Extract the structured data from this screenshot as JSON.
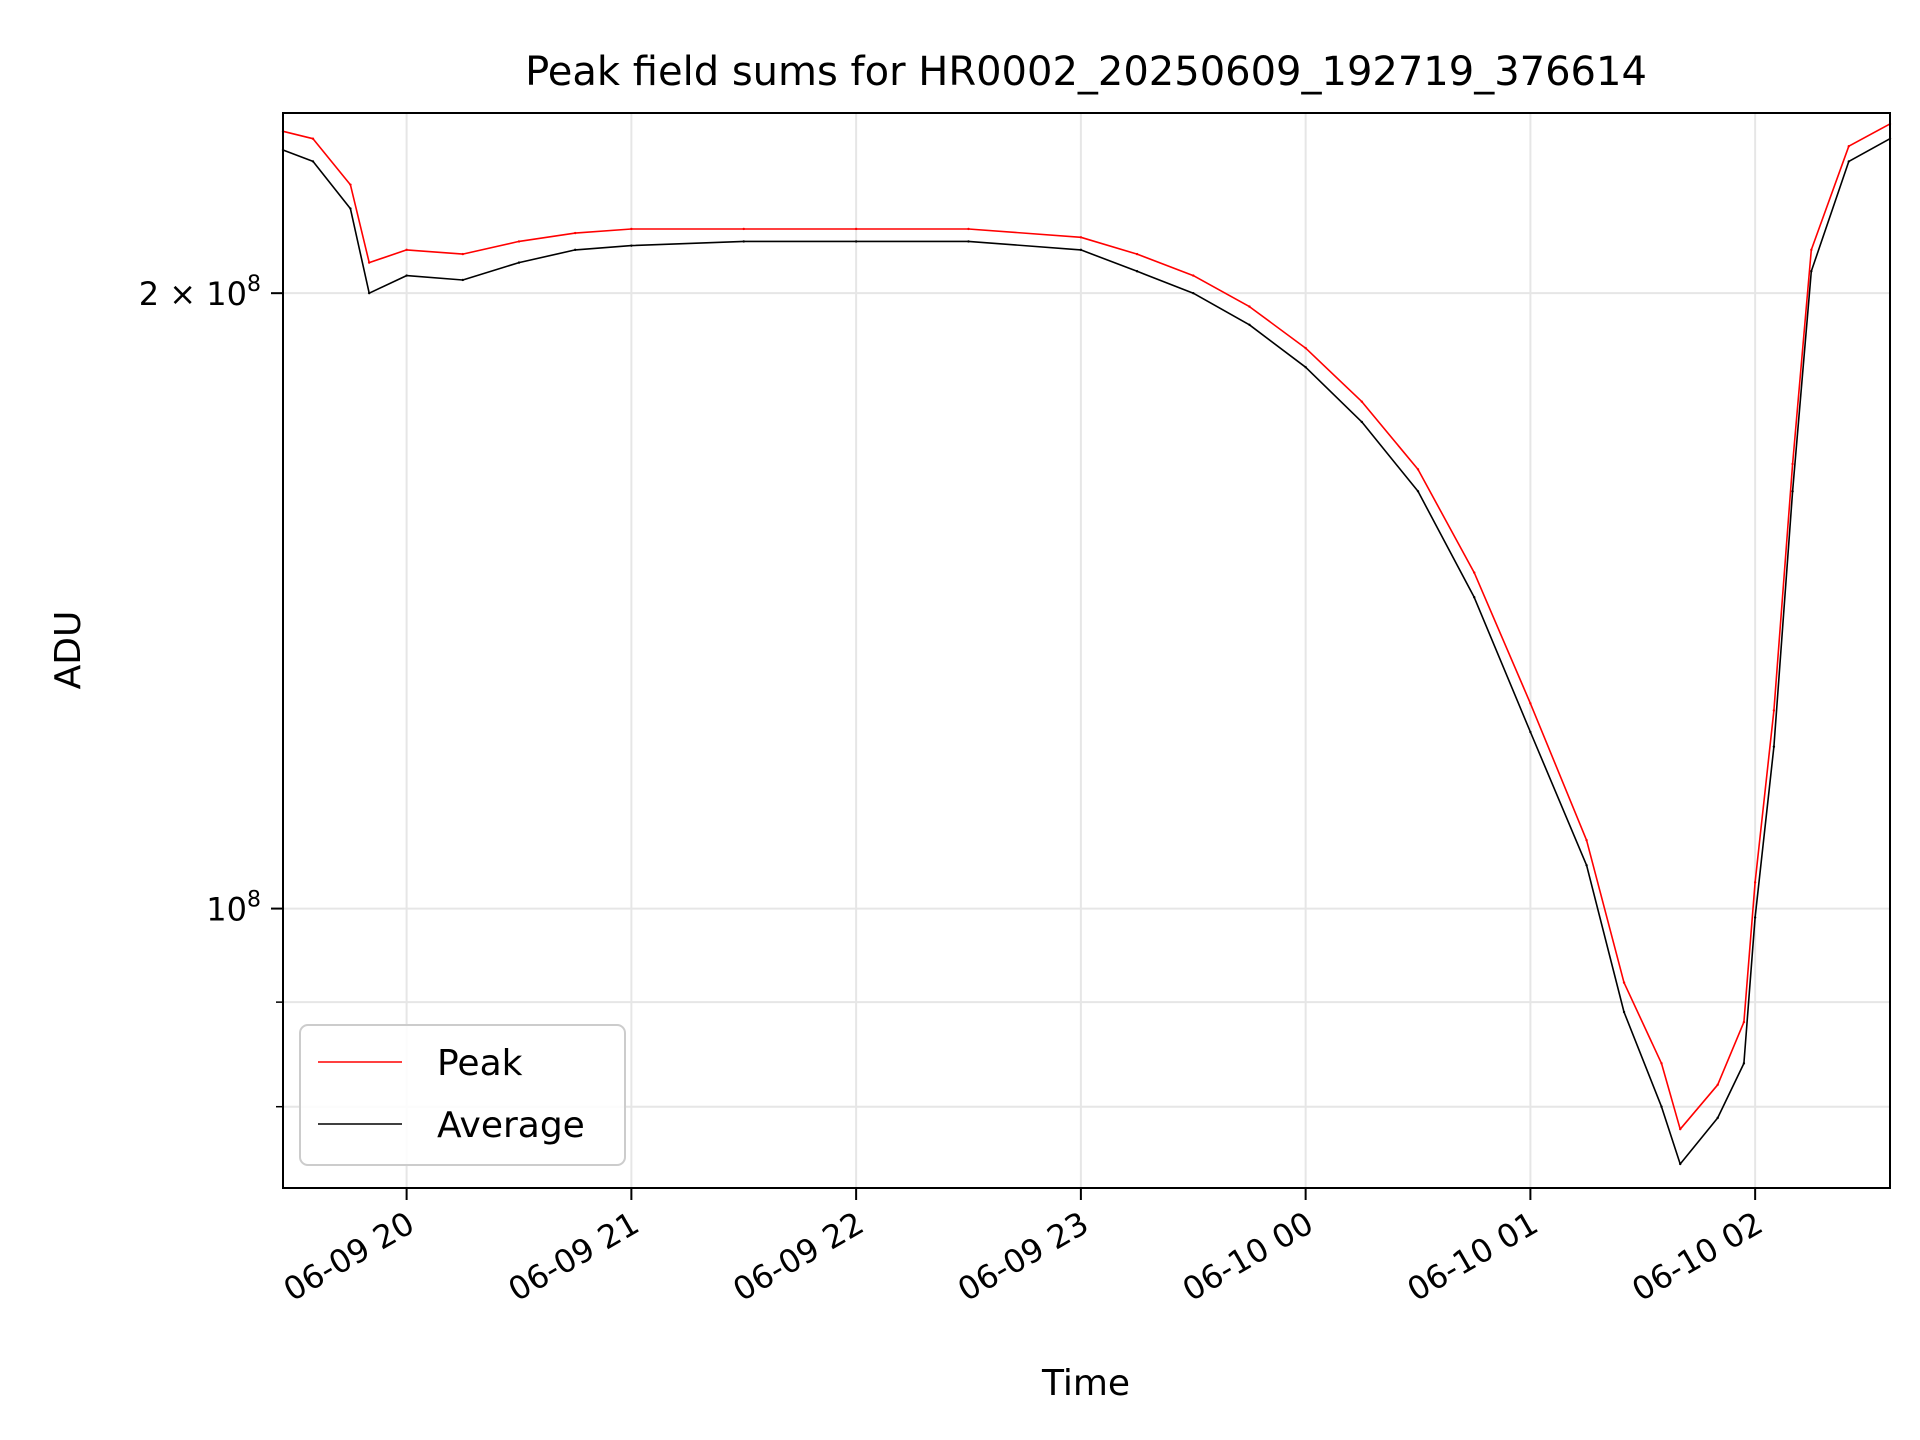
{
  "chart_data": {
    "type": "line",
    "title": "Peak field sums for HR0002_20250609_192719_376614",
    "xlabel": "Time",
    "ylabel": "ADU",
    "y_scale": "log",
    "grid": true,
    "legend_placement": "lower-left",
    "xlim": [
      "2025-06-09 19:27",
      "2025-06-10 02:36"
    ],
    "ylim": [
      73000000,
      245000000
    ],
    "x_ticks": [
      {
        "value": "2025-06-09 20:00",
        "label": "06-09 20"
      },
      {
        "value": "2025-06-09 21:00",
        "label": "06-09 21"
      },
      {
        "value": "2025-06-09 22:00",
        "label": "06-09 22"
      },
      {
        "value": "2025-06-09 23:00",
        "label": "06-09 23"
      },
      {
        "value": "2025-06-10 00:00",
        "label": "06-10 00"
      },
      {
        "value": "2025-06-10 01:00",
        "label": "06-10 01"
      },
      {
        "value": "2025-06-10 02:00",
        "label": "06-10 02"
      }
    ],
    "y_ticks": [
      {
        "value": 100000000,
        "base": "10",
        "exp": "8",
        "mant": ""
      },
      {
        "value": 200000000,
        "base": "10",
        "exp": "8",
        "mant": "2 × "
      }
    ],
    "y_minor_ticks": [
      80000000,
      90000000
    ],
    "x": [
      "2025-06-09 19:27",
      "2025-06-09 19:35",
      "2025-06-09 19:45",
      "2025-06-09 19:50",
      "2025-06-09 20:00",
      "2025-06-09 20:15",
      "2025-06-09 20:30",
      "2025-06-09 20:45",
      "2025-06-09 21:00",
      "2025-06-09 21:30",
      "2025-06-09 22:00",
      "2025-06-09 22:30",
      "2025-06-09 23:00",
      "2025-06-09 23:15",
      "2025-06-09 23:30",
      "2025-06-09 23:45",
      "2025-06-10 00:00",
      "2025-06-10 00:15",
      "2025-06-10 00:30",
      "2025-06-10 00:45",
      "2025-06-10 01:00",
      "2025-06-10 01:15",
      "2025-06-10 01:25",
      "2025-06-10 01:35",
      "2025-06-10 01:40",
      "2025-06-10 01:50",
      "2025-06-10 01:57",
      "2025-06-10 02:00",
      "2025-06-10 02:05",
      "2025-06-10 02:10",
      "2025-06-10 02:15",
      "2025-06-10 02:25",
      "2025-06-10 02:36"
    ],
    "series": [
      {
        "name": "Peak",
        "color": "#ff0000",
        "values": [
          240000000,
          238000000,
          226000000,
          207000000,
          210000000,
          209000000,
          212000000,
          214000000,
          215000000,
          215000000,
          215000000,
          215000000,
          213000000,
          209000000,
          204000000,
          197000000,
          188000000,
          177000000,
          164000000,
          146000000,
          126000000,
          108000000,
          92000000,
          84000000,
          78000000,
          82000000,
          88000000,
          103000000,
          125000000,
          165000000,
          210000000,
          236000000,
          242000000
        ]
      },
      {
        "name": "Average",
        "color": "#000000",
        "values": [
          235000000,
          232000000,
          220000000,
          200000000,
          204000000,
          203000000,
          207000000,
          210000000,
          211000000,
          212000000,
          212000000,
          212000000,
          210000000,
          205000000,
          200000000,
          193000000,
          184000000,
          173000000,
          160000000,
          142000000,
          122000000,
          105000000,
          89000000,
          80000000,
          75000000,
          79000000,
          84000000,
          99000000,
          120000000,
          160000000,
          205000000,
          232000000,
          238000000
        ]
      }
    ]
  }
}
